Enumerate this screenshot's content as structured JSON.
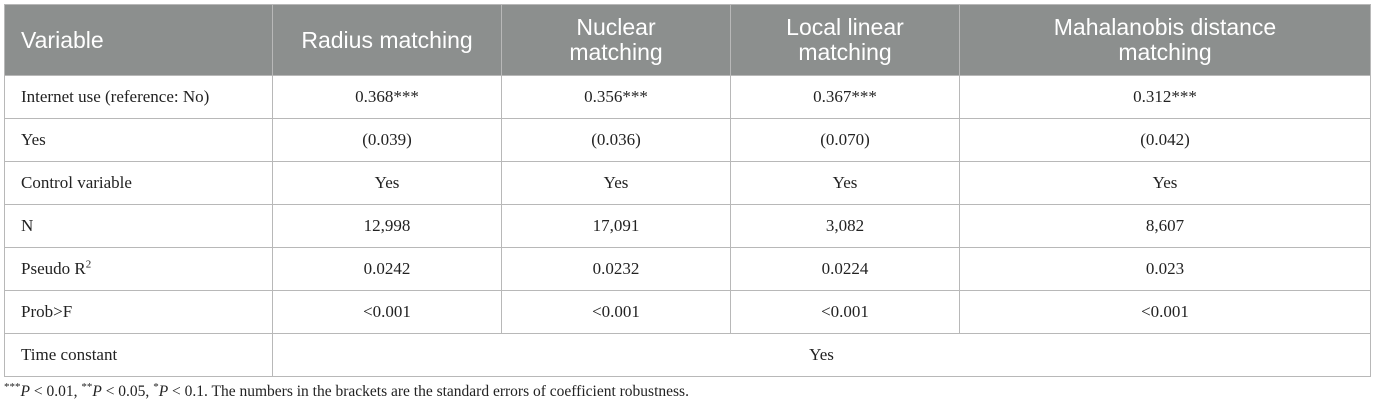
{
  "table": {
    "headers": [
      "Variable",
      "Radius matching",
      "Nuclear\nmatching",
      "Local linear\nmatching",
      "Mahalanobis distance\nmatching"
    ],
    "rows": [
      {
        "label": "Internet use (reference: No)",
        "values": [
          "0.368***",
          "0.356***",
          "0.367***",
          "0.312***"
        ]
      },
      {
        "label": "Yes",
        "values": [
          "(0.039)",
          "(0.036)",
          "(0.070)",
          "(0.042)"
        ]
      },
      {
        "label": "Control variable",
        "values": [
          "Yes",
          "Yes",
          "Yes",
          "Yes"
        ]
      },
      {
        "label": "N",
        "values": [
          "12,998",
          "17,091",
          "3,082",
          "8,607"
        ]
      },
      {
        "label": "Pseudo R",
        "label_sup": "2",
        "values": [
          "0.0242",
          "0.0232",
          "0.0224",
          "0.023"
        ]
      },
      {
        "label": "Prob>F",
        "values": [
          "<0.001",
          "<0.001",
          "<0.001",
          "<0.001"
        ]
      }
    ],
    "last_row": {
      "label": "Time constant",
      "value": "Yes"
    }
  },
  "footnote": {
    "s1": "***",
    "p1": "P",
    "t1": " < 0.01, ",
    "s2": "**",
    "p2": "P",
    "t2": " < 0.05, ",
    "s3": "*",
    "p3": "P",
    "t3": " < 0.1. The numbers in the brackets are the standard errors of coefficient robustness."
  },
  "colors": {
    "header_bg": "#8c8f8e",
    "header_text": "#ffffff",
    "border": "#b8b8b8"
  }
}
